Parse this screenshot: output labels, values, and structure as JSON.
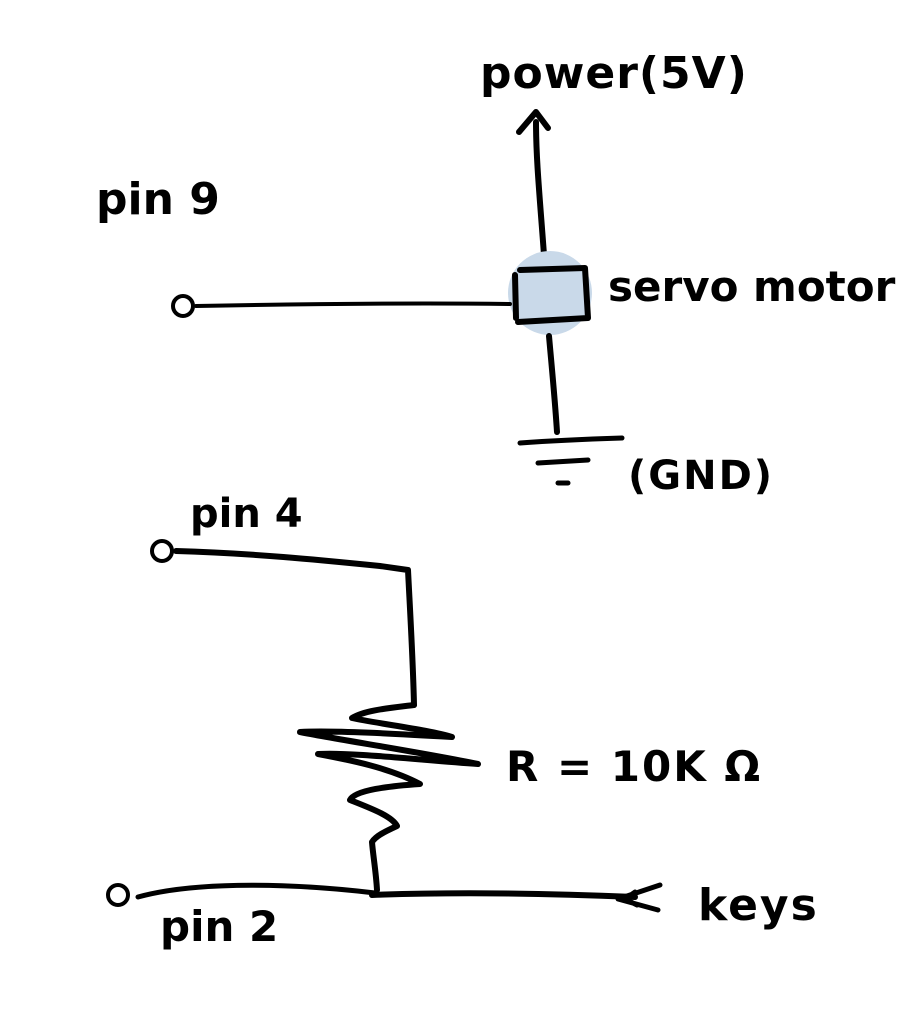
{
  "labels": {
    "power": "power(5V)",
    "pin9": "pin 9",
    "servo": "servo motor",
    "gnd": "(GND)",
    "pin4": "pin 4",
    "resistor": "R = 10K Ω",
    "pin2": "pin 2",
    "keys": "keys"
  },
  "colors": {
    "ink": "#000000",
    "servo_highlight": "#c9d9e9",
    "background": "#ffffff"
  },
  "icons": {
    "servo": "servo-motor-symbol",
    "ground": "ground-symbol",
    "resistor": "resistor-zigzag",
    "terminal": "open-circle-terminal",
    "arrow": "arrow-up",
    "key": "double-arrow-left"
  }
}
